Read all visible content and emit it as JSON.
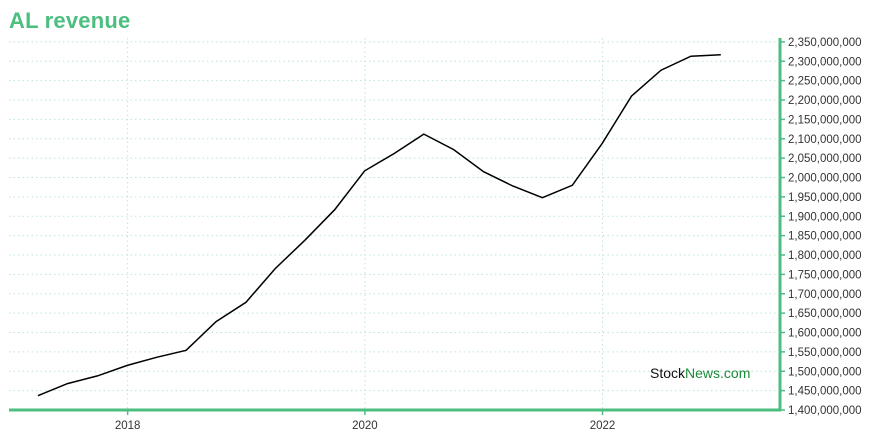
{
  "title": "AL revenue",
  "watermark": {
    "part1": "Stock",
    "part2": "News",
    "part3": ".com"
  },
  "colors": {
    "accent": "#4cbe80",
    "line": "#000000",
    "grid": "#bde8cf"
  },
  "chart_data": {
    "type": "line",
    "title": "AL revenue",
    "xlabel": "",
    "ylabel": "",
    "xlim": [
      "2017-01-01",
      "2023-07-01"
    ],
    "ylim": [
      1400000000,
      2360000000
    ],
    "x_ticks": [
      "2018",
      "2020",
      "2022"
    ],
    "y_ticks": [
      1400000000,
      1450000000,
      1500000000,
      1550000000,
      1600000000,
      1650000000,
      1700000000,
      1750000000,
      1800000000,
      1850000000,
      1900000000,
      1950000000,
      2000000000,
      2050000000,
      2100000000,
      2150000000,
      2200000000,
      2250000000,
      2300000000,
      2350000000
    ],
    "y_tick_labels": [
      "1,400,000,000",
      "1,450,000,000",
      "1,500,000,000",
      "1,550,000,000",
      "1,600,000,000",
      "1,650,000,000",
      "1,700,000,000",
      "1,750,000,000",
      "1,800,000,000",
      "1,850,000,000",
      "1,900,000,000",
      "1,950,000,000",
      "2,000,000,000",
      "2,050,000,000",
      "2,100,000,000",
      "2,150,000,000",
      "2,200,000,000",
      "2,250,000,000",
      "2,300,000,000",
      "2,350,000,000"
    ],
    "grid": true,
    "legend": "none",
    "series": [
      {
        "x": [
          "2017-03-31",
          "2017-06-30",
          "2017-09-30",
          "2017-12-31",
          "2018-03-31",
          "2018-06-30",
          "2018-09-30",
          "2018-12-31",
          "2019-03-31",
          "2019-06-30",
          "2019-09-30",
          "2019-12-31",
          "2020-03-31",
          "2020-06-30",
          "2020-09-30",
          "2020-12-31",
          "2021-03-31",
          "2021-06-30",
          "2021-09-30",
          "2021-12-31",
          "2022-03-31",
          "2022-06-30",
          "2022-09-30",
          "2022-12-31"
        ],
        "y": [
          1437000000,
          1468000000,
          1488000000,
          1515000000,
          1536000000,
          1554000000,
          1628000000,
          1678000000,
          1765000000,
          1838000000,
          1917000000,
          2017000000,
          2062000000,
          2112000000,
          2072000000,
          2015000000,
          1978000000,
          1948000000,
          1980000000,
          2088000000,
          2210000000,
          2277000000,
          2313000000,
          2317000000
        ]
      }
    ]
  }
}
